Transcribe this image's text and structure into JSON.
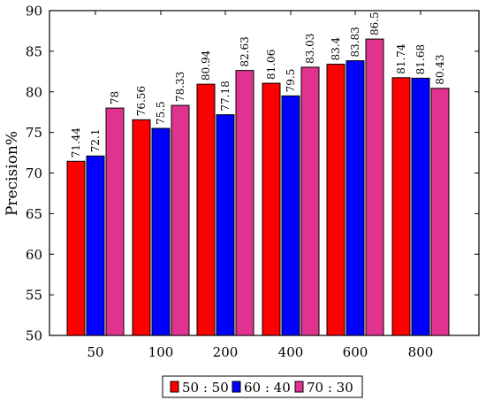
{
  "chart_data": {
    "type": "bar",
    "title": "",
    "xlabel": "",
    "ylabel": "Precision%",
    "ylim": [
      50,
      90
    ],
    "yticks": [
      50,
      55,
      60,
      65,
      70,
      75,
      80,
      85,
      90
    ],
    "grid": false,
    "legend_position": "bottom-center",
    "categories": [
      "50",
      "100",
      "200",
      "400",
      "600",
      "800"
    ],
    "series": [
      {
        "name": "50 : 50",
        "color": "#ff0000",
        "values": [
          71.44,
          76.56,
          80.94,
          81.06,
          83.4,
          81.74
        ]
      },
      {
        "name": "60 : 40",
        "color": "#0000ff",
        "values": [
          72.1,
          75.5,
          77.18,
          79.5,
          83.83,
          81.68
        ]
      },
      {
        "name": "70 : 30",
        "color": "#e0338f",
        "values": [
          78,
          78.33,
          82.63,
          83.03,
          86.5,
          80.43
        ]
      }
    ],
    "data_labels": [
      [
        "71.44",
        "76.56",
        "80.94",
        "81.06",
        "83.4",
        "81.74"
      ],
      [
        "72.1",
        "75.5",
        "77.18",
        "79.5",
        "83.83",
        "81.68"
      ],
      [
        "78",
        "78.33",
        "82.63",
        "83.03",
        "86.5",
        "80.43"
      ]
    ]
  }
}
